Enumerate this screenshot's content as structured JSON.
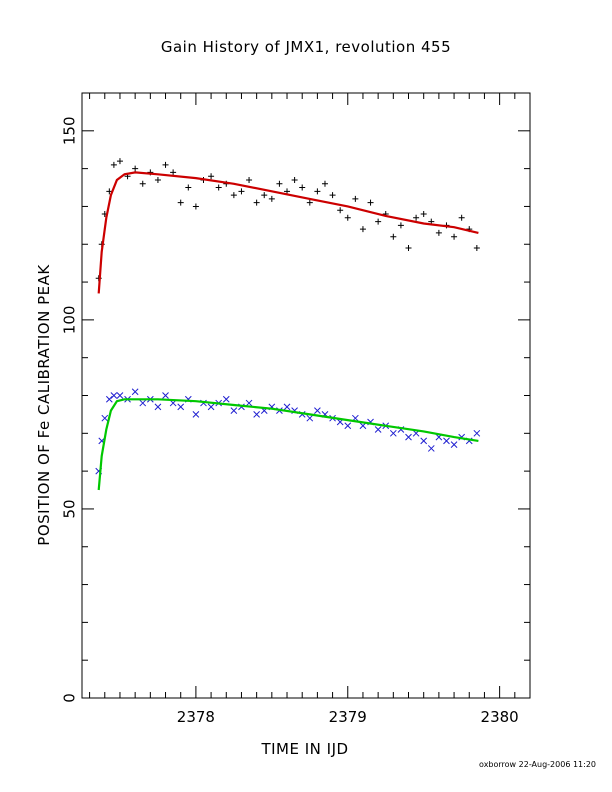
{
  "chart_data": {
    "type": "scatter",
    "title": "Gain History of JMX1, revolution 455",
    "xlabel": "TIME IN IJD",
    "ylabel": "POSITION OF Fe CALIBRATION PEAK",
    "xlim": [
      2377.25,
      2380.2
    ],
    "ylim": [
      0,
      160
    ],
    "xticks": [
      2378,
      2379,
      2380
    ],
    "yticks": [
      0,
      50,
      100,
      150
    ],
    "grid": false,
    "series": [
      {
        "marker": "plus",
        "color": "#000000",
        "x": [
          2377.36,
          2377.38,
          2377.4,
          2377.43,
          2377.46,
          2377.5,
          2377.55,
          2377.6,
          2377.65,
          2377.7,
          2377.75,
          2377.8,
          2377.85,
          2377.9,
          2377.95,
          2378.0,
          2378.05,
          2378.1,
          2378.15,
          2378.2,
          2378.25,
          2378.3,
          2378.35,
          2378.4,
          2378.45,
          2378.5,
          2378.55,
          2378.6,
          2378.65,
          2378.7,
          2378.75,
          2378.8,
          2378.85,
          2378.9,
          2378.95,
          2379.0,
          2379.05,
          2379.1,
          2379.15,
          2379.2,
          2379.25,
          2379.3,
          2379.35,
          2379.4,
          2379.45,
          2379.5,
          2379.55,
          2379.6,
          2379.65,
          2379.7,
          2379.75,
          2379.8,
          2379.85
        ],
        "y": [
          111,
          120,
          128,
          134,
          141,
          142,
          138,
          140,
          136,
          139,
          137,
          141,
          139,
          131,
          135,
          130,
          137,
          138,
          135,
          136,
          133,
          134,
          137,
          131,
          133,
          132,
          136,
          134,
          137,
          135,
          131,
          134,
          136,
          133,
          129,
          127,
          132,
          124,
          131,
          126,
          128,
          122,
          125,
          119,
          127,
          128,
          126,
          123,
          125,
          122,
          127,
          124,
          119
        ]
      },
      {
        "marker": "cross",
        "color": "#1f1fd0",
        "x": [
          2377.36,
          2377.38,
          2377.4,
          2377.43,
          2377.46,
          2377.5,
          2377.55,
          2377.6,
          2377.65,
          2377.7,
          2377.75,
          2377.8,
          2377.85,
          2377.9,
          2377.95,
          2378.0,
          2378.05,
          2378.1,
          2378.15,
          2378.2,
          2378.25,
          2378.3,
          2378.35,
          2378.4,
          2378.45,
          2378.5,
          2378.55,
          2378.6,
          2378.65,
          2378.7,
          2378.75,
          2378.8,
          2378.85,
          2378.9,
          2378.95,
          2379.0,
          2379.05,
          2379.1,
          2379.15,
          2379.2,
          2379.25,
          2379.3,
          2379.35,
          2379.4,
          2379.45,
          2379.5,
          2379.55,
          2379.6,
          2379.65,
          2379.7,
          2379.75,
          2379.8,
          2379.85
        ],
        "y": [
          60,
          68,
          74,
          79,
          80,
          80,
          79,
          81,
          78,
          79,
          77,
          80,
          78,
          77,
          79,
          75,
          78,
          77,
          78,
          79,
          76,
          77,
          78,
          75,
          76,
          77,
          76,
          77,
          76,
          75,
          74,
          76,
          75,
          74,
          73,
          72,
          74,
          72,
          73,
          71,
          72,
          70,
          71,
          69,
          70,
          68,
          66,
          69,
          68,
          67,
          69,
          68,
          70
        ]
      },
      {
        "type": "line",
        "color": "#cc0000",
        "x": [
          2377.36,
          2377.38,
          2377.41,
          2377.44,
          2377.48,
          2377.53,
          2377.6,
          2377.75,
          2378.0,
          2378.25,
          2378.5,
          2378.75,
          2379.0,
          2379.25,
          2379.5,
          2379.7,
          2379.86
        ],
        "y": [
          107,
          118,
          127,
          133,
          137,
          138.5,
          139,
          138.5,
          137.5,
          136,
          134,
          132,
          130,
          127.5,
          125.5,
          124.5,
          123
        ]
      },
      {
        "type": "line",
        "color": "#00c800",
        "x": [
          2377.36,
          2377.38,
          2377.41,
          2377.44,
          2377.48,
          2377.53,
          2377.6,
          2377.75,
          2378.0,
          2378.25,
          2378.5,
          2378.75,
          2379.0,
          2379.25,
          2379.5,
          2379.7,
          2379.86
        ],
        "y": [
          55,
          64,
          71,
          76,
          78.5,
          79,
          79,
          79,
          78.5,
          77.5,
          76.5,
          75,
          73.5,
          72,
          70.5,
          69,
          68
        ]
      }
    ]
  },
  "footer": {
    "stamp": "oxborrow 22-Aug-2006 11:20"
  }
}
